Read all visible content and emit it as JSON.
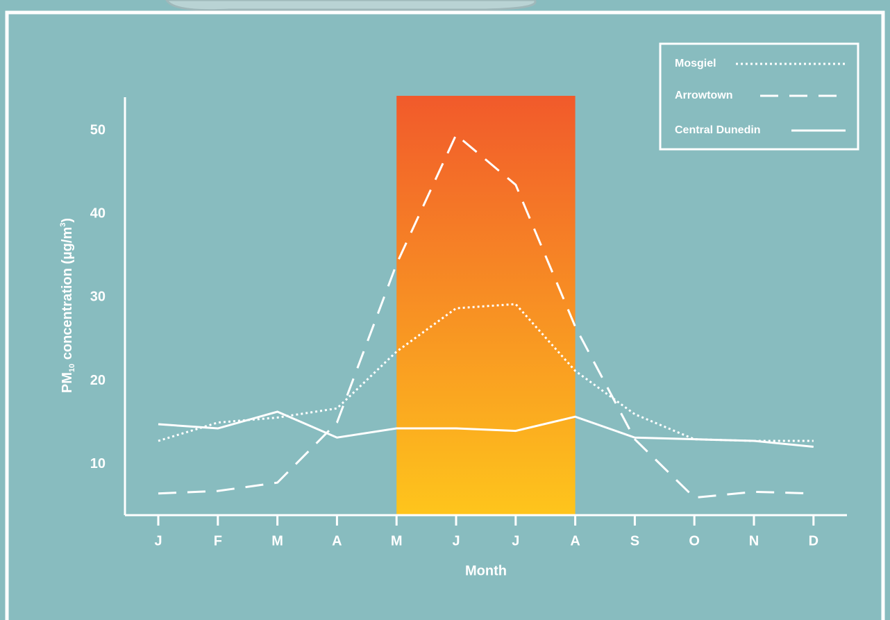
{
  "chart_data": {
    "type": "line",
    "x_label": "Month",
    "y_label": {
      "main": "PM",
      "sub": "10",
      "rest": " concentration (µg/m",
      "sup": "3",
      "end": ")"
    },
    "categories": [
      "J",
      "F",
      "M",
      "A",
      "M",
      "J",
      "J",
      "A",
      "S",
      "O",
      "N",
      "D"
    ],
    "series": [
      {
        "name": "Mosgiel",
        "color": "#ffffff",
        "dash": "dotted",
        "values": [
          12.8,
          15,
          15.6,
          16.7,
          23.5,
          28.7,
          29.2,
          21.2,
          16,
          13,
          12.8,
          12.8
        ]
      },
      {
        "name": "Arrowtown",
        "color": "#ffffff",
        "dash": "dashed",
        "values": [
          6.5,
          6.8,
          7.8,
          15,
          34,
          49.5,
          43.5,
          26.5,
          13,
          6,
          6.7,
          6.5
        ]
      },
      {
        "name": "Central Dunedin",
        "color": "#ffffff",
        "dash": "solid",
        "values": [
          14.8,
          14.3,
          16.3,
          13.2,
          14.3,
          14.3,
          14,
          15.7,
          13.2,
          13,
          12.8,
          12.1
        ]
      }
    ],
    "highlight": {
      "from": 4,
      "to": 7,
      "colors": [
        "#f15a2b",
        "#fec51c"
      ]
    },
    "ylim": [
      3.9,
      54
    ],
    "yticks": [
      10,
      20,
      30,
      40,
      50
    ],
    "legend": "top-right"
  }
}
